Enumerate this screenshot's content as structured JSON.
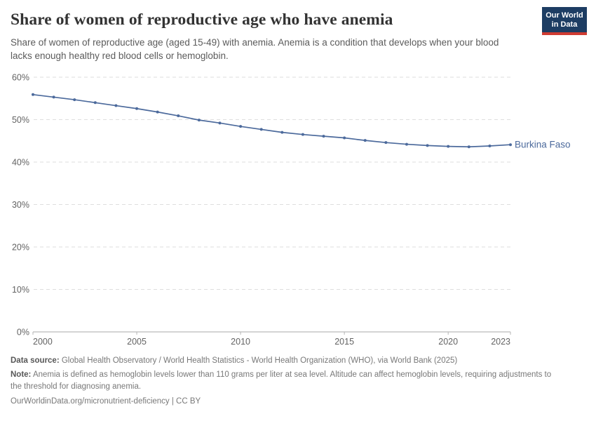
{
  "header": {
    "title": "Share of women of reproductive age who have anemia",
    "subtitle": "Share of women of reproductive age (aged 15-49) with anemia. Anemia is a condition that develops when your blood lacks enough healthy red blood cells or hemoglobin.",
    "logo": {
      "line1": "Our World",
      "line2": "in Data",
      "bg_color": "#1d3d63",
      "stripe_color": "#cf3b32"
    }
  },
  "chart_data": {
    "type": "line",
    "title": "Share of women of reproductive age who have anemia",
    "xlabel": "",
    "ylabel": "",
    "xlim": [
      2000,
      2023
    ],
    "ylim": [
      0,
      60
    ],
    "x_ticks": [
      2000,
      2005,
      2010,
      2015,
      2020,
      2023
    ],
    "y_ticks": [
      0,
      10,
      20,
      30,
      40,
      50,
      60
    ],
    "y_tick_suffix": "%",
    "grid": "horizontal-dashed",
    "legend_position": "end-of-line-label",
    "series": [
      {
        "name": "Burkina Faso",
        "color": "#4c6a9c",
        "x": [
          2000,
          2001,
          2002,
          2003,
          2004,
          2005,
          2006,
          2007,
          2008,
          2009,
          2010,
          2011,
          2012,
          2013,
          2014,
          2015,
          2016,
          2017,
          2018,
          2019,
          2020,
          2021,
          2022,
          2023
        ],
        "values": [
          55.9,
          55.3,
          54.7,
          54.0,
          53.3,
          52.6,
          51.8,
          50.9,
          49.9,
          49.2,
          48.4,
          47.7,
          47.0,
          46.5,
          46.1,
          45.7,
          45.1,
          44.6,
          44.2,
          43.9,
          43.7,
          43.6,
          43.8,
          44.1
        ]
      }
    ],
    "colors": {
      "gridline": "#dedede",
      "axis": "#a8a8a8",
      "tick": "#b5b5b5",
      "tick_label": "#636363"
    }
  },
  "footer": {
    "datasource_label": "Data source:",
    "datasource_text": " Global Health Observatory / World Health Statistics - World Health Organization (WHO), via World Bank (2025)",
    "note_label": "Note:",
    "note_text": " Anemia is defined as hemoglobin levels lower than 110 grams per liter at sea level. Altitude can affect hemoglobin levels, requiring adjustments to the threshold for diagnosing anemia.",
    "url_text": "OurWorldinData.org/micronutrient-deficiency | CC BY"
  }
}
